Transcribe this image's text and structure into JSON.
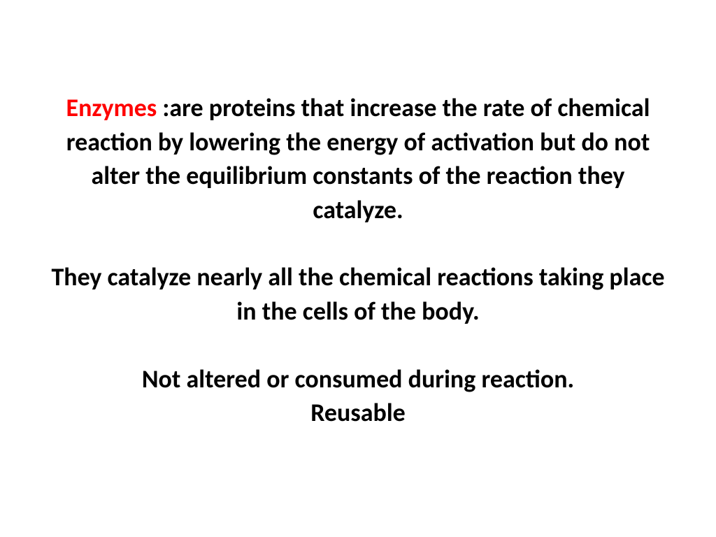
{
  "slide": {
    "background_color": "#ffffff",
    "text_color": "#000000",
    "highlight_color": "#ff0000",
    "font_family": "Calibri, Arial, sans-serif",
    "font_size_pt": 28,
    "font_weight": "bold",
    "text_align": "center",
    "paragraph1": {
      "highlight_term": "Enzymes",
      "colon": " :",
      "body": "are proteins that increase the rate of chemical reaction by lowering the energy of activation but do not alter the equilibrium constants of the reaction they catalyze."
    },
    "paragraph2": "They catalyze nearly all the chemical reactions taking place in the cells of the body.",
    "paragraph3_line1": "Not altered or consumed during reaction.",
    "paragraph3_line2": "Reusable"
  }
}
